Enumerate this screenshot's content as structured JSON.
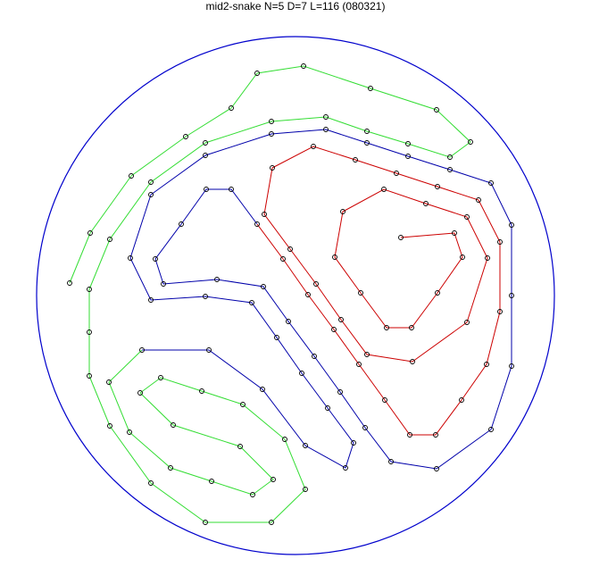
{
  "title": "mid2-snake N=5 D=7 L=116 (080321)",
  "colors": {
    "boundary": "#0000cc",
    "segment_green": "#33dd33",
    "segment_blue": "#0000aa",
    "segment_red": "#cc0000",
    "node_stroke": "#000000"
  }
}
